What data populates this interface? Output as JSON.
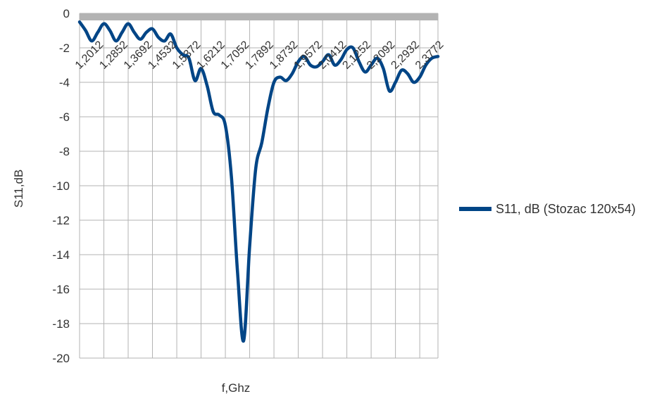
{
  "chart_data": {
    "type": "line",
    "title": "",
    "xlabel": "f,Ghz",
    "ylabel": "S11,dB",
    "ylim": [
      -20,
      0
    ],
    "y_ticks": [
      0,
      -2,
      -4,
      -6,
      -8,
      -10,
      -12,
      -14,
      -16,
      -18,
      -20
    ],
    "grid": "horizontal and vertical",
    "legend_position": "right",
    "x_tick_labels": [
      "1,2012",
      "1,2852",
      "1,3692",
      "1,4532",
      "1,5372",
      "1,6212",
      "1,7052",
      "1,7892",
      "1,8732",
      "1,9572",
      "2,0412",
      "2,1252",
      "2,2092",
      "2,2932",
      "2,3772"
    ],
    "series": [
      {
        "name": "S11, dB (Stozac 120x54)",
        "color": "#004586",
        "x": [
          1.2012,
          1.2222,
          1.2432,
          1.2642,
          1.2852,
          1.3062,
          1.3272,
          1.3482,
          1.3692,
          1.3902,
          1.4112,
          1.4322,
          1.4532,
          1.4742,
          1.4952,
          1.5162,
          1.5372,
          1.5582,
          1.5792,
          1.6002,
          1.6212,
          1.6422,
          1.6632,
          1.6842,
          1.7052,
          1.7262,
          1.7472,
          1.7682,
          1.7892,
          1.8102,
          1.8312,
          1.8522,
          1.8732,
          1.8942,
          1.9152,
          1.9362,
          1.9572,
          1.9782,
          1.9992,
          2.0202,
          2.0412,
          2.0622,
          2.0832,
          2.1042,
          2.1252,
          2.1462,
          2.1672,
          2.1882,
          2.2092,
          2.2302,
          2.2512,
          2.2722,
          2.2932,
          2.3142,
          2.3352,
          2.3562,
          2.3772,
          2.3982,
          2.4192,
          2.4402
        ],
        "y": [
          -0.5,
          -1.0,
          -1.6,
          -1.1,
          -0.6,
          -1.0,
          -1.6,
          -1.1,
          -0.6,
          -1.1,
          -1.5,
          -1.1,
          -0.9,
          -1.4,
          -1.6,
          -1.2,
          -2.0,
          -2.4,
          -2.6,
          -3.9,
          -3.2,
          -4.2,
          -5.7,
          -5.9,
          -6.5,
          -9.5,
          -15.0,
          -19.0,
          -13.5,
          -9.0,
          -7.5,
          -5.5,
          -4.0,
          -3.7,
          -3.9,
          -3.5,
          -2.8,
          -2.5,
          -3.0,
          -3.1,
          -2.8,
          -2.4,
          -3.0,
          -2.7,
          -2.1,
          -2.0,
          -2.8,
          -3.4,
          -3.0,
          -2.6,
          -3.2,
          -4.5,
          -4.0,
          -3.3,
          -3.5,
          -4.0,
          -3.7,
          -3.0,
          -2.6,
          -2.5
        ]
      }
    ]
  }
}
